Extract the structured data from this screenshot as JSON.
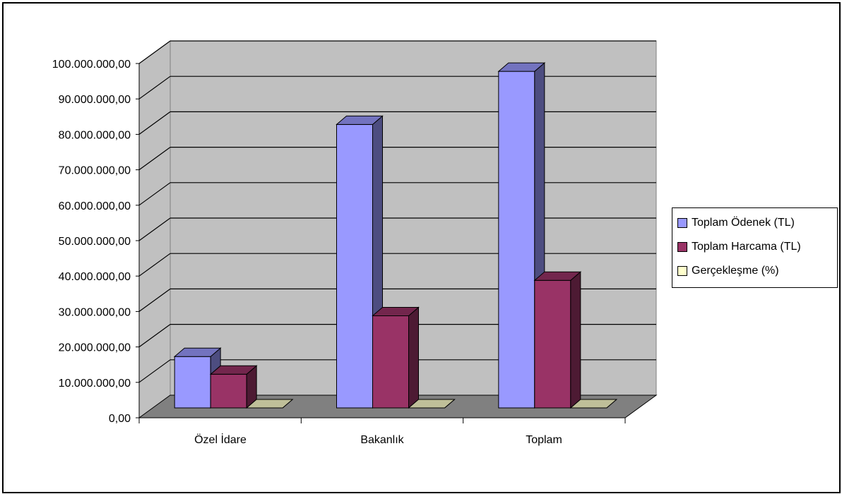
{
  "chart_data": {
    "type": "bar",
    "categories": [
      "Özel İdare",
      "Bakanlık",
      "Toplam"
    ],
    "series": [
      {
        "name": "Toplam Ödenek (TL)",
        "values": [
          14500000,
          80000000,
          95000000
        ],
        "color": "#9999ff"
      },
      {
        "name": "Toplam Harcama (TL)",
        "values": [
          9500000,
          26000000,
          36000000
        ],
        "color": "#993366"
      },
      {
        "name": "Gerçekleşme (%)",
        "values": [
          0,
          0,
          0
        ],
        "color": "#ffffcc"
      }
    ],
    "ylim": [
      0,
      100000000
    ],
    "yticks": [
      "0,00",
      "10.000.000,00",
      "20.000.000,00",
      "30.000.000,00",
      "40.000.000,00",
      "50.000.000,00",
      "60.000.000,00",
      "70.000.000,00",
      "80.000.000,00",
      "90.000.000,00",
      "100.000.000,00"
    ],
    "grid": true,
    "three_d": true,
    "legend_position": "right",
    "wall_color": "#c0c0c0",
    "floor_color": "#808080"
  }
}
